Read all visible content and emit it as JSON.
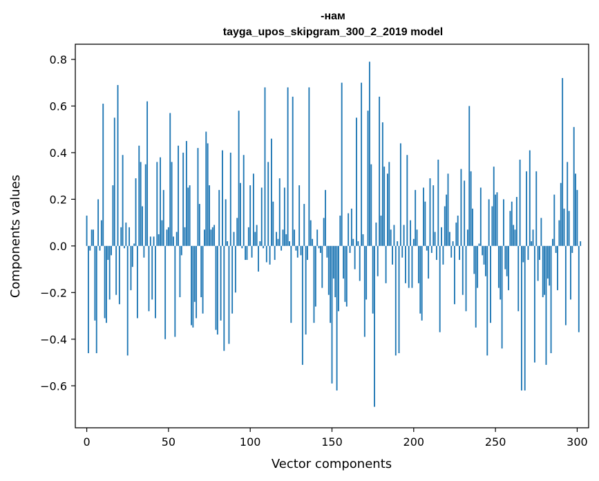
{
  "chart_data": {
    "type": "bar",
    "title_line1": "-нам",
    "title_line2": "tayga_upos_skipgram_300_2_2019 model",
    "xlabel": "Vector components",
    "ylabel": "Components values",
    "xlim": [
      -7,
      307
    ],
    "ylim": [
      -0.78,
      0.865
    ],
    "xticks": [
      0,
      50,
      100,
      150,
      200,
      250,
      300
    ],
    "yticks": [
      -0.6,
      -0.4,
      -0.2,
      0.0,
      0.2,
      0.4,
      0.6,
      0.8
    ],
    "ytick_labels": [
      "−0.6",
      "−0.4",
      "−0.2",
      "0.0",
      "0.2",
      "0.4",
      "0.6",
      "0.8"
    ],
    "xtick_labels": [
      "0",
      "50",
      "100",
      "150",
      "200",
      "250",
      "300"
    ],
    "bar_color": "#1f77b4",
    "values": [
      0.13,
      -0.46,
      -0.02,
      0.07,
      0.07,
      -0.32,
      -0.46,
      0.2,
      -0.02,
      0.11,
      0.61,
      -0.31,
      -0.33,
      -0.06,
      -0.23,
      -0.04,
      0.26,
      0.55,
      -0.21,
      0.69,
      -0.25,
      0.08,
      0.39,
      -0.01,
      0.1,
      -0.47,
      0.08,
      -0.19,
      -0.09,
      0.01,
      0.29,
      -0.31,
      0.43,
      0.36,
      0.17,
      -0.05,
      0.35,
      0.62,
      -0.28,
      0.04,
      -0.23,
      0.04,
      -0.31,
      0.36,
      0.05,
      0.38,
      0.11,
      0.24,
      -0.4,
      0.07,
      0.08,
      0.57,
      0.36,
      0.04,
      -0.39,
      0.06,
      0.43,
      -0.22,
      -0.04,
      0.4,
      0.08,
      0.45,
      0.25,
      0.26,
      -0.34,
      -0.35,
      -0.24,
      -0.31,
      0.42,
      0.18,
      -0.22,
      -0.29,
      0.07,
      0.49,
      0.44,
      0.26,
      0.07,
      0.08,
      0.09,
      -0.36,
      -0.38,
      0.24,
      -0.32,
      0.41,
      -0.45,
      0.2,
      0.02,
      -0.42,
      0.4,
      -0.29,
      0.06,
      -0.2,
      0.12,
      0.58,
      0.27,
      -0.01,
      0.39,
      -0.06,
      -0.06,
      0.08,
      0.26,
      -0.05,
      0.31,
      0.06,
      0.09,
      -0.11,
      0.02,
      0.25,
      -0.01,
      0.68,
      -0.07,
      0.36,
      -0.08,
      0.46,
      0.19,
      -0.06,
      0.06,
      0.03,
      0.29,
      -0.02,
      0.07,
      0.25,
      0.05,
      0.68,
      0.02,
      -0.33,
      0.64,
      0.07,
      -0.02,
      -0.05,
      0.26,
      -0.04,
      -0.51,
      0.18,
      -0.38,
      -0.06,
      0.68,
      0.11,
      0.03,
      -0.33,
      -0.26,
      0.07,
      -0.01,
      -0.03,
      -0.18,
      0.12,
      0.24,
      -0.05,
      -0.21,
      -0.33,
      -0.59,
      -0.14,
      -0.22,
      -0.62,
      -0.28,
      0.13,
      0.7,
      -0.14,
      -0.24,
      -0.26,
      0.14,
      -0.03,
      0.16,
      0.03,
      -0.1,
      0.55,
      0.02,
      -0.15,
      0.7,
      0.05,
      -0.39,
      -0.23,
      0.58,
      0.79,
      0.35,
      -0.29,
      -0.69,
      0.1,
      -0.13,
      0.64,
      0.13,
      0.53,
      0.34,
      -0.16,
      0.31,
      0.36,
      0.07,
      -0.08,
      0.09,
      -0.47,
      0.02,
      -0.46,
      0.44,
      -0.05,
      0.09,
      -0.16,
      0.39,
      -0.18,
      0.11,
      -0.18,
      0.03,
      0.24,
      0.07,
      -0.16,
      -0.29,
      -0.32,
      0.25,
      0.19,
      -0.02,
      -0.14,
      0.29,
      -0.03,
      0.26,
      0.06,
      -0.06,
      0.37,
      -0.37,
      0.08,
      -0.08,
      0.17,
      0.22,
      0.31,
      0.06,
      -0.05,
      0.02,
      -0.25,
      0.1,
      0.13,
      -0.06,
      0.33,
      -0.21,
      0.28,
      -0.28,
      0.07,
      0.6,
      0.32,
      0.16,
      -0.12,
      -0.35,
      -0.18,
      0.01,
      0.25,
      -0.04,
      -0.08,
      -0.13,
      -0.47,
      0.2,
      -0.33,
      0.17,
      0.34,
      0.22,
      0.23,
      -0.18,
      -0.23,
      -0.44,
      0.2,
      -0.1,
      -0.13,
      -0.19,
      0.15,
      0.19,
      0.09,
      0.07,
      0.21,
      -0.28,
      0.37,
      -0.62,
      -0.07,
      -0.62,
      0.32,
      -0.06,
      0.41,
      0.02,
      0.07,
      -0.5,
      0.32,
      -0.15,
      -0.06,
      0.12,
      -0.22,
      -0.21,
      -0.51,
      -0.14,
      -0.17,
      -0.46,
      0.03,
      0.22,
      -0.03,
      -0.19,
      0.11,
      0.27,
      0.72,
      0.16,
      -0.34,
      0.36,
      0.15,
      -0.23,
      -0.03,
      0.51,
      0.31,
      0.24,
      -0.37,
      0.02
    ]
  }
}
